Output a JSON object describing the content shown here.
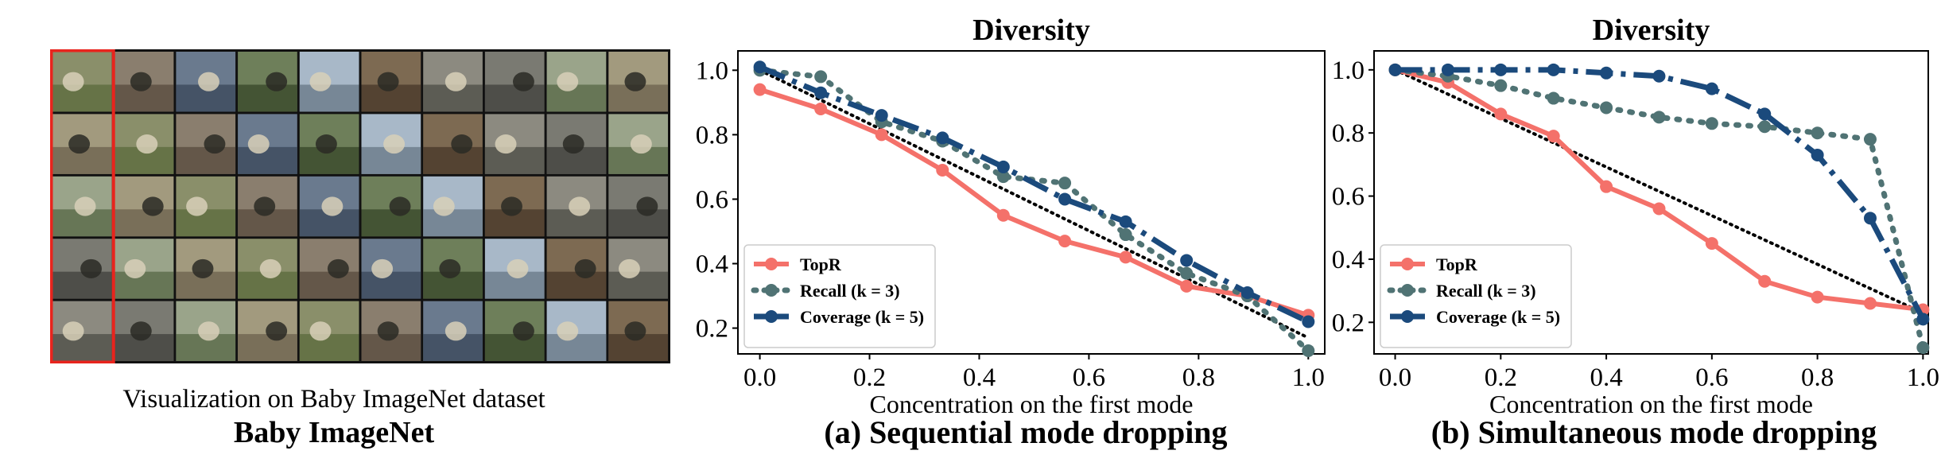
{
  "figure": {
    "left_panel": {
      "caption": "Visualization on Baby ImageNet dataset",
      "title": "Baby ImageNet",
      "grid_rows": 5,
      "grid_cols": 10,
      "highlight_color": "#e8241d"
    },
    "caption_a": "(a) Sequential mode dropping",
    "caption_b": "(b) Simultaneous mode dropping"
  },
  "colors": {
    "topr": "#f4716a",
    "recall": "#507374",
    "coverage": "#1b4a7c",
    "reference": "#000000"
  },
  "chart_data": [
    {
      "type": "line",
      "title": "Diversity",
      "xlabel": "Concentration on the first mode",
      "ylabel": "",
      "xlim": [
        -0.04,
        1.03
      ],
      "ylim": [
        0.12,
        1.06
      ],
      "xticks": [
        "0.0",
        "0.2",
        "0.4",
        "0.6",
        "0.8",
        "1.0"
      ],
      "yticks": [
        "0.2",
        "0.4",
        "0.6",
        "0.8",
        "1.0"
      ],
      "legend_position": "bottom-left",
      "series": [
        {
          "name": "TopR",
          "key": "topr",
          "x": [
            0.0,
            0.111,
            0.222,
            0.333,
            0.444,
            0.556,
            0.667,
            0.778,
            0.889,
            1.0
          ],
          "y": [
            0.94,
            0.88,
            0.8,
            0.69,
            0.55,
            0.47,
            0.42,
            0.33,
            0.3,
            0.24
          ]
        },
        {
          "name": "Recall (k = 3)",
          "key": "recall",
          "x": [
            0.0,
            0.111,
            0.222,
            0.333,
            0.444,
            0.556,
            0.667,
            0.778,
            0.889,
            1.0
          ],
          "y": [
            1.0,
            0.98,
            0.84,
            0.78,
            0.67,
            0.65,
            0.49,
            0.37,
            0.3,
            0.13
          ]
        },
        {
          "name": "Coverage (k = 5)",
          "key": "coverage",
          "x": [
            0.0,
            0.111,
            0.222,
            0.333,
            0.444,
            0.556,
            0.667,
            0.778,
            0.889,
            1.0
          ],
          "y": [
            1.01,
            0.93,
            0.86,
            0.79,
            0.7,
            0.6,
            0.53,
            0.41,
            0.31,
            0.22
          ]
        },
        {
          "name": "",
          "key": "reference",
          "x": [
            0.0,
            1.0
          ],
          "y": [
            1.0,
            0.17
          ]
        }
      ]
    },
    {
      "type": "line",
      "title": "Diversity",
      "xlabel": "Concentration on the first mode",
      "ylabel": "",
      "xlim": [
        -0.04,
        1.01
      ],
      "ylim": [
        0.1,
        1.06
      ],
      "xticks": [
        "0.0",
        "0.2",
        "0.4",
        "0.6",
        "0.8",
        "1.0"
      ],
      "yticks": [
        "0.2",
        "0.4",
        "0.6",
        "0.8",
        "1.0"
      ],
      "legend_position": "bottom-left",
      "series": [
        {
          "name": "TopR",
          "key": "topr",
          "x": [
            0.0,
            0.1,
            0.2,
            0.3,
            0.4,
            0.5,
            0.6,
            0.7,
            0.8,
            0.9,
            1.0
          ],
          "y": [
            1.0,
            0.96,
            0.86,
            0.79,
            0.63,
            0.56,
            0.45,
            0.33,
            0.28,
            0.26,
            0.24
          ]
        },
        {
          "name": "Recall (k = 3)",
          "key": "recall",
          "x": [
            0.0,
            0.1,
            0.2,
            0.3,
            0.4,
            0.5,
            0.6,
            0.7,
            0.8,
            0.9,
            1.0
          ],
          "y": [
            1.0,
            0.98,
            0.95,
            0.91,
            0.88,
            0.85,
            0.83,
            0.82,
            0.8,
            0.78,
            0.12
          ]
        },
        {
          "name": "Coverage (k = 5)",
          "key": "coverage",
          "x": [
            0.0,
            0.1,
            0.2,
            0.3,
            0.4,
            0.5,
            0.6,
            0.7,
            0.8,
            0.9,
            1.0
          ],
          "y": [
            1.0,
            1.0,
            1.0,
            1.0,
            0.99,
            0.98,
            0.94,
            0.86,
            0.73,
            0.53,
            0.21
          ]
        },
        {
          "name": "",
          "key": "reference",
          "x": [
            0.0,
            1.0
          ],
          "y": [
            1.0,
            0.23
          ]
        }
      ]
    }
  ]
}
